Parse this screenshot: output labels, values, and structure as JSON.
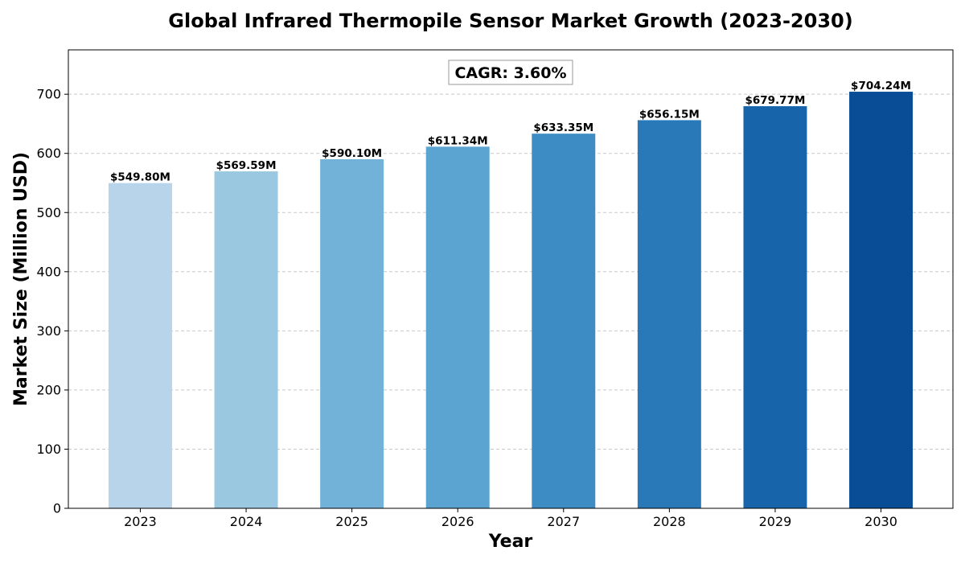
{
  "chart_data": {
    "type": "bar",
    "title": "Global Infrared Thermopile Sensor Market Growth (2023-2030)",
    "xlabel": "Year",
    "ylabel": "Market Size (Million USD)",
    "categories": [
      "2023",
      "2024",
      "2025",
      "2026",
      "2027",
      "2028",
      "2029",
      "2030"
    ],
    "values": [
      549.8,
      569.59,
      590.1,
      611.34,
      633.35,
      656.15,
      679.77,
      704.24
    ],
    "data_labels": [
      "$549.80M",
      "$569.59M",
      "$590.10M",
      "$611.34M",
      "$633.35M",
      "$656.15M",
      "$679.77M",
      "$704.24M"
    ],
    "ylim": [
      0,
      775
    ],
    "yticks": [
      0,
      100,
      200,
      300,
      400,
      500,
      600,
      700
    ],
    "grid": "horizontal dashed",
    "annotation": "CAGR: 3.60%",
    "colors": [
      "#b7d4ea",
      "#9ac8e0",
      "#73b2d8",
      "#5ba3d0",
      "#3d8dc4",
      "#2979b9",
      "#1764ab",
      "#084d96"
    ],
    "grid_color": "#c8c8c8"
  }
}
